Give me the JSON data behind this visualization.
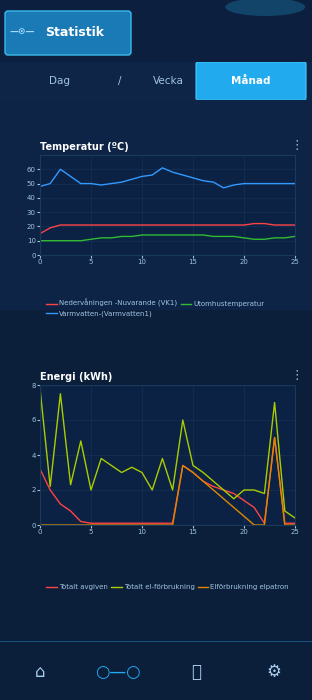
{
  "bg_color": "#0b1e3a",
  "chart_bg": "#0b2244",
  "grid_color": "#1a3a5c",
  "text_color": "#a0c4e0",
  "title_color": "#ffffff",
  "header_title": "Statistik",
  "temp_title": "Temperatur (ºC)",
  "temp_x": [
    0,
    1,
    2,
    3,
    4,
    5,
    6,
    7,
    8,
    9,
    10,
    11,
    12,
    13,
    14,
    15,
    16,
    17,
    18,
    19,
    20,
    21,
    22,
    23,
    24,
    25
  ],
  "temp_xticks": [
    0,
    5,
    10,
    15,
    20,
    25
  ],
  "temp_ylim": [
    0,
    70
  ],
  "temp_yticks": [
    0,
    10,
    20,
    30,
    40,
    50,
    60
  ],
  "varmvatten": [
    48,
    50,
    60,
    55,
    50,
    50,
    49,
    50,
    51,
    53,
    55,
    56,
    61,
    58,
    56,
    54,
    52,
    51,
    47,
    49,
    50,
    50,
    50,
    50,
    50,
    50
  ],
  "varmvatten_color": "#3399ff",
  "nedervaning": [
    15,
    19,
    21,
    21,
    21,
    21,
    21,
    21,
    21,
    21,
    21,
    21,
    21,
    21,
    21,
    21,
    21,
    21,
    21,
    21,
    21,
    22,
    22,
    21,
    21,
    21
  ],
  "nedervaning_color": "#ff4444",
  "utomhus": [
    10,
    10,
    10,
    10,
    10,
    11,
    12,
    12,
    13,
    13,
    14,
    14,
    14,
    14,
    14,
    14,
    14,
    13,
    13,
    13,
    12,
    11,
    11,
    12,
    12,
    13
  ],
  "utomhus_color": "#33bb33",
  "temp_legend": [
    {
      "label": "Nedervåningen -Nuvarande (VK1)",
      "color": "#ff4444"
    },
    {
      "label": "Varmvatten-(Varmvatten1)",
      "color": "#3399ff"
    },
    {
      "label": "Utomhustemperatur",
      "color": "#33bb33"
    }
  ],
  "energy_title": "Energi (kWh)",
  "energy_x": [
    0,
    1,
    2,
    3,
    4,
    5,
    6,
    7,
    8,
    9,
    10,
    11,
    12,
    13,
    14,
    15,
    16,
    17,
    18,
    19,
    20,
    21,
    22,
    23,
    24,
    25
  ],
  "energy_xticks": [
    0,
    5,
    10,
    15,
    20,
    25
  ],
  "energy_ylim": [
    0,
    8
  ],
  "energy_yticks": [
    0,
    2,
    4,
    6,
    8
  ],
  "totalt_avgiven": [
    3.2,
    2.0,
    1.2,
    0.8,
    0.2,
    0.1,
    0.1,
    0.1,
    0.1,
    0.1,
    0.1,
    0.1,
    0.1,
    0.1,
    3.4,
    3.0,
    2.5,
    2.2,
    2.0,
    1.8,
    1.4,
    1.0,
    0.1,
    5.0,
    0.1,
    0.1
  ],
  "totalt_avgiven_color": "#ff4444",
  "totalt_el": [
    7.8,
    2.2,
    7.5,
    2.3,
    4.8,
    2.0,
    3.8,
    3.4,
    3.0,
    3.3,
    3.0,
    2.0,
    3.8,
    2.0,
    6.0,
    3.4,
    3.0,
    2.5,
    2.0,
    1.5,
    2.0,
    2.0,
    1.8,
    7.0,
    0.8,
    0.4
  ],
  "totalt_el_color": "#aacc00",
  "elpatron": [
    0.0,
    0.0,
    0.0,
    0.0,
    0.0,
    0.0,
    0.0,
    0.0,
    0.0,
    0.0,
    0.0,
    0.0,
    0.0,
    0.0,
    3.4,
    3.0,
    2.5,
    2.0,
    1.5,
    1.0,
    0.5,
    0.0,
    0.0,
    5.0,
    0.0,
    0.0
  ],
  "elpatron_color": "#dd8800",
  "energy_legend": [
    {
      "label": "Totalt avgiven",
      "color": "#ff4444"
    },
    {
      "label": "Totalt el-förbrukning",
      "color": "#aacc00"
    },
    {
      "label": "Elförbrukning elpatron",
      "color": "#dd8800"
    }
  ]
}
